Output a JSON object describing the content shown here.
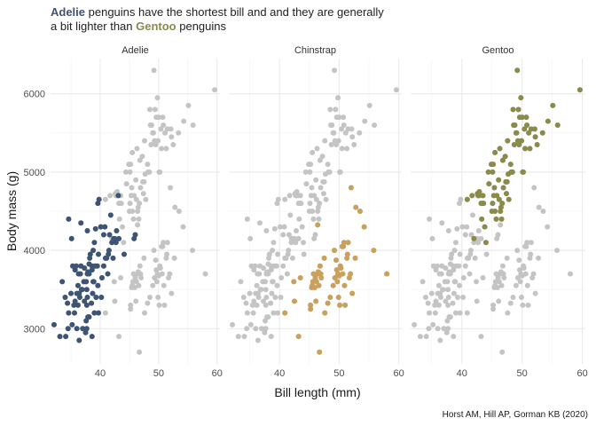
{
  "chart_data": {
    "type": "scatter",
    "title_parts": [
      {
        "text": "Adelie",
        "highlight": "#3d5474"
      },
      {
        "text": " penguins have the shortest bill and and they are generally"
      },
      {
        "text": "a bit lighter than ",
        "break_before": true
      },
      {
        "text": "Gentoo",
        "highlight": "#8a8a4b"
      },
      {
        "text": " penguins"
      }
    ],
    "xlabel": "Bill length (mm)",
    "ylabel": "Body mass (g)",
    "caption": "Horst AM, Hill AP, Gorman KB (2020)",
    "xlim": [
      31.5,
      60.5
    ],
    "ylim": [
      2550,
      6450
    ],
    "x_ticks": [
      40,
      50,
      60
    ],
    "y_ticks": [
      3000,
      4000,
      5000,
      6000
    ],
    "grid": true,
    "background_color": "#c4c4c4",
    "facets": [
      "Adelie",
      "Chinstrap",
      "Gentoo"
    ],
    "series": [
      {
        "name": "Adelie",
        "color": "#3d5474",
        "points": [
          [
            32.1,
            3050
          ],
          [
            33.1,
            2900
          ],
          [
            33.5,
            3600
          ],
          [
            34.0,
            3400
          ],
          [
            34.1,
            2900
          ],
          [
            34.4,
            3325
          ],
          [
            34.5,
            3000
          ],
          [
            34.6,
            3200
          ],
          [
            34.6,
            4400
          ],
          [
            35.0,
            3450
          ],
          [
            35.1,
            4150
          ],
          [
            35.2,
            3050
          ],
          [
            35.3,
            3800
          ],
          [
            35.5,
            3300
          ],
          [
            35.6,
            3200
          ],
          [
            35.7,
            3350
          ],
          [
            35.7,
            3750
          ],
          [
            35.9,
            3800
          ],
          [
            36.0,
            3000
          ],
          [
            36.0,
            3450
          ],
          [
            36.2,
            3300
          ],
          [
            36.2,
            3550
          ],
          [
            36.3,
            3700
          ],
          [
            36.4,
            2850
          ],
          [
            36.4,
            3450
          ],
          [
            36.5,
            3400
          ],
          [
            36.6,
            3700
          ],
          [
            36.7,
            3800
          ],
          [
            36.7,
            4350
          ],
          [
            36.8,
            3500
          ],
          [
            36.9,
            3500
          ],
          [
            37.0,
            3000
          ],
          [
            37.2,
            3600
          ],
          [
            37.3,
            3350
          ],
          [
            37.3,
            3775
          ],
          [
            37.5,
            2950
          ],
          [
            37.6,
            3100
          ],
          [
            37.6,
            3600
          ],
          [
            37.7,
            3000
          ],
          [
            37.7,
            3300
          ],
          [
            37.7,
            3500
          ],
          [
            37.8,
            3400
          ],
          [
            37.8,
            3700
          ],
          [
            37.8,
            4250
          ],
          [
            37.9,
            3150
          ],
          [
            37.9,
            3725
          ],
          [
            38.1,
            3150
          ],
          [
            38.1,
            3700
          ],
          [
            38.1,
            3825
          ],
          [
            38.2,
            3900
          ],
          [
            38.3,
            3950
          ],
          [
            38.5,
            3325
          ],
          [
            38.6,
            2900
          ],
          [
            38.6,
            3750
          ],
          [
            38.6,
            3800
          ],
          [
            38.7,
            3450
          ],
          [
            38.8,
            3600
          ],
          [
            38.8,
            4000
          ],
          [
            38.9,
            3600
          ],
          [
            39.0,
            3200
          ],
          [
            39.0,
            4100
          ],
          [
            39.1,
            3800
          ],
          [
            39.2,
            4275
          ],
          [
            39.3,
            3400
          ],
          [
            39.5,
            3800
          ],
          [
            39.6,
            3550
          ],
          [
            39.6,
            4600
          ],
          [
            39.7,
            3200
          ],
          [
            39.7,
            3950
          ],
          [
            39.8,
            4650
          ],
          [
            40.1,
            4300
          ],
          [
            40.2,
            3400
          ],
          [
            40.3,
            3650
          ],
          [
            40.6,
            3800
          ],
          [
            40.6,
            4200
          ],
          [
            40.8,
            4300
          ],
          [
            40.9,
            3900
          ],
          [
            41.1,
            3900
          ],
          [
            41.3,
            3700
          ],
          [
            41.4,
            3950
          ],
          [
            41.5,
            4000
          ],
          [
            41.6,
            4200
          ],
          [
            41.8,
            4450
          ],
          [
            42.0,
            4100
          ],
          [
            42.2,
            3900
          ],
          [
            42.3,
            4150
          ],
          [
            42.5,
            4150
          ],
          [
            42.7,
            4100
          ],
          [
            42.8,
            4250
          ],
          [
            43.1,
            4700
          ],
          [
            43.2,
            4150
          ],
          [
            44.1,
            3950
          ],
          [
            45.8,
            4150
          ],
          [
            46.0,
            4200
          ]
        ]
      },
      {
        "name": "Chinstrap",
        "color": "#c9a15c",
        "points": [
          [
            40.9,
            3200
          ],
          [
            42.4,
            3600
          ],
          [
            42.5,
            3350
          ],
          [
            43.2,
            2900
          ],
          [
            43.5,
            3650
          ],
          [
            45.2,
            3250
          ],
          [
            45.2,
            3300
          ],
          [
            45.4,
            3525
          ],
          [
            45.5,
            3550
          ],
          [
            45.6,
            3600
          ],
          [
            45.7,
            3700
          ],
          [
            45.9,
            3525
          ],
          [
            46.0,
            3650
          ],
          [
            46.1,
            3350
          ],
          [
            46.2,
            3600
          ],
          [
            46.4,
            3700
          ],
          [
            46.4,
            4325
          ],
          [
            46.5,
            3725
          ],
          [
            46.6,
            3550
          ],
          [
            46.7,
            2700
          ],
          [
            46.8,
            3800
          ],
          [
            46.9,
            3700
          ],
          [
            47.0,
            3650
          ],
          [
            47.5,
            3900
          ],
          [
            47.6,
            3200
          ],
          [
            48.1,
            3325
          ],
          [
            48.5,
            3400
          ],
          [
            49.0,
            3550
          ],
          [
            49.2,
            4000
          ],
          [
            49.3,
            3650
          ],
          [
            49.5,
            3875
          ],
          [
            49.6,
            3750
          ],
          [
            49.7,
            3600
          ],
          [
            49.8,
            3700
          ],
          [
            49.9,
            3400
          ],
          [
            50.0,
            3675
          ],
          [
            50.1,
            3300
          ],
          [
            50.2,
            3800
          ],
          [
            50.3,
            3775
          ],
          [
            50.5,
            4050
          ],
          [
            50.6,
            3700
          ],
          [
            50.7,
            4050
          ],
          [
            50.8,
            4100
          ],
          [
            50.9,
            3550
          ],
          [
            51.0,
            3300
          ],
          [
            51.3,
            3900
          ],
          [
            51.4,
            3950
          ],
          [
            51.5,
            4100
          ],
          [
            51.7,
            3650
          ],
          [
            51.9,
            3700
          ],
          [
            52.0,
            4800
          ],
          [
            52.2,
            3450
          ],
          [
            52.7,
            3900
          ],
          [
            52.8,
            4550
          ],
          [
            53.5,
            4500
          ],
          [
            54.2,
            4300
          ],
          [
            55.8,
            4000
          ],
          [
            58.0,
            3700
          ]
        ]
      },
      {
        "name": "Gentoo",
        "color": "#8a8a4b",
        "points": [
          [
            40.9,
            4650
          ],
          [
            41.7,
            4700
          ],
          [
            42.0,
            4150
          ],
          [
            42.6,
            4725
          ],
          [
            42.7,
            4700
          ],
          [
            42.8,
            4700
          ],
          [
            42.9,
            4750
          ],
          [
            43.2,
            4600
          ],
          [
            43.3,
            4400
          ],
          [
            43.4,
            4600
          ],
          [
            43.5,
            4700
          ],
          [
            43.6,
            4600
          ],
          [
            43.8,
            4300
          ],
          [
            44.0,
            4100
          ],
          [
            44.4,
            5000
          ],
          [
            44.5,
            4850
          ],
          [
            44.9,
            5100
          ],
          [
            45.0,
            4500
          ],
          [
            45.1,
            4600
          ],
          [
            45.1,
            5000
          ],
          [
            45.2,
            5100
          ],
          [
            45.3,
            4700
          ],
          [
            45.4,
            4800
          ],
          [
            45.5,
            4500
          ],
          [
            45.5,
            5250
          ],
          [
            45.7,
            4400
          ],
          [
            45.8,
            4700
          ],
          [
            46.1,
            4900
          ],
          [
            46.2,
            4650
          ],
          [
            46.3,
            5300
          ],
          [
            46.4,
            4500
          ],
          [
            46.5,
            4550
          ],
          [
            46.6,
            4400
          ],
          [
            46.7,
            4600
          ],
          [
            46.8,
            5150
          ],
          [
            46.9,
            4800
          ],
          [
            47.2,
            5200
          ],
          [
            47.3,
            4875
          ],
          [
            47.4,
            4725
          ],
          [
            47.5,
            4875
          ],
          [
            47.6,
            5400
          ],
          [
            47.7,
            4975
          ],
          [
            47.8,
            4650
          ],
          [
            48.1,
            5100
          ],
          [
            48.2,
            5000
          ],
          [
            48.4,
            5000
          ],
          [
            48.5,
            5800
          ],
          [
            48.6,
            5600
          ],
          [
            48.7,
            5350
          ],
          [
            48.8,
            5600
          ],
          [
            49.0,
            5500
          ],
          [
            49.1,
            5500
          ],
          [
            49.2,
            6300
          ],
          [
            49.3,
            5400
          ],
          [
            49.4,
            5800
          ],
          [
            49.5,
            5350
          ],
          [
            49.6,
            5700
          ],
          [
            49.8,
            5950
          ],
          [
            49.9,
            5400
          ],
          [
            50.0,
            5700
          ],
          [
            50.1,
            5000
          ],
          [
            50.2,
            5000
          ],
          [
            50.4,
            5550
          ],
          [
            50.5,
            5300
          ],
          [
            50.7,
            5700
          ],
          [
            50.8,
            5600
          ],
          [
            51.1,
            5500
          ],
          [
            51.3,
            5300
          ],
          [
            51.5,
            5550
          ],
          [
            52.1,
            5550
          ],
          [
            52.2,
            5450
          ],
          [
            52.5,
            5350
          ],
          [
            53.4,
            5500
          ],
          [
            54.3,
            5650
          ],
          [
            55.1,
            5850
          ],
          [
            55.9,
            5600
          ],
          [
            59.6,
            6050
          ]
        ]
      }
    ]
  }
}
